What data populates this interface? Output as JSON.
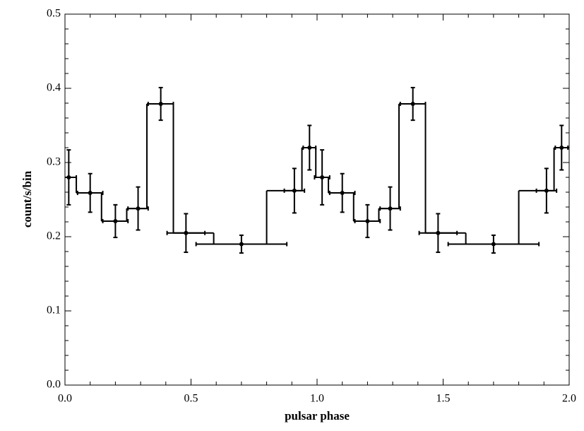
{
  "chart_data": {
    "type": "step",
    "x_label": "pulsar phase",
    "y_label": "count/s/bin",
    "xlim": [
      0,
      2
    ],
    "ylim": [
      0,
      0.5
    ],
    "xticks": [
      {
        "value": 0,
        "label": "0.0"
      },
      0.5,
      {
        "value": 1,
        "label": "1.0"
      },
      1.5,
      {
        "value": 2,
        "label": "2.0"
      }
    ],
    "yticks": [
      {
        "value": 0,
        "label": "0.0"
      },
      0.1,
      0.2,
      0.3,
      0.4,
      0.5
    ],
    "minor_ticks": 5,
    "color": "#000000",
    "step_edges": [
      0,
      0.045,
      0.145,
      0.245,
      0.325,
      0.43,
      0.59,
      0.8,
      0.94,
      0.995,
      1.045,
      1.145,
      1.245,
      1.325,
      1.43,
      1.59,
      1.8,
      1.94,
      2.0
    ],
    "step_values": [
      0.28,
      0.259,
      0.221,
      0.238,
      0.379,
      0.205,
      0.19,
      0.262,
      0.32,
      0.28,
      0.259,
      0.221,
      0.238,
      0.379,
      0.205,
      0.19,
      0.262,
      0.32
    ],
    "points": {
      "x": [
        0.015,
        0.1,
        0.2,
        0.29,
        0.38,
        0.48,
        0.7,
        0.91,
        0.97,
        1.02,
        1.1,
        1.2,
        1.29,
        1.38,
        1.48,
        1.7,
        1.91,
        1.97
      ],
      "x_err": [
        0.03,
        0.05,
        0.05,
        0.04,
        0.05,
        0.075,
        0.18,
        0.04,
        0.025,
        0.03,
        0.05,
        0.05,
        0.04,
        0.05,
        0.075,
        0.18,
        0.04,
        0.025
      ],
      "y": [
        0.28,
        0.259,
        0.221,
        0.238,
        0.379,
        0.205,
        0.19,
        0.262,
        0.32,
        0.28,
        0.259,
        0.221,
        0.238,
        0.379,
        0.205,
        0.19,
        0.262,
        0.32
      ],
      "y_err": [
        0.037,
        0.026,
        0.022,
        0.029,
        0.022,
        0.026,
        0.012,
        0.03,
        0.03,
        0.037,
        0.026,
        0.022,
        0.029,
        0.022,
        0.026,
        0.012,
        0.03,
        0.03
      ]
    }
  }
}
